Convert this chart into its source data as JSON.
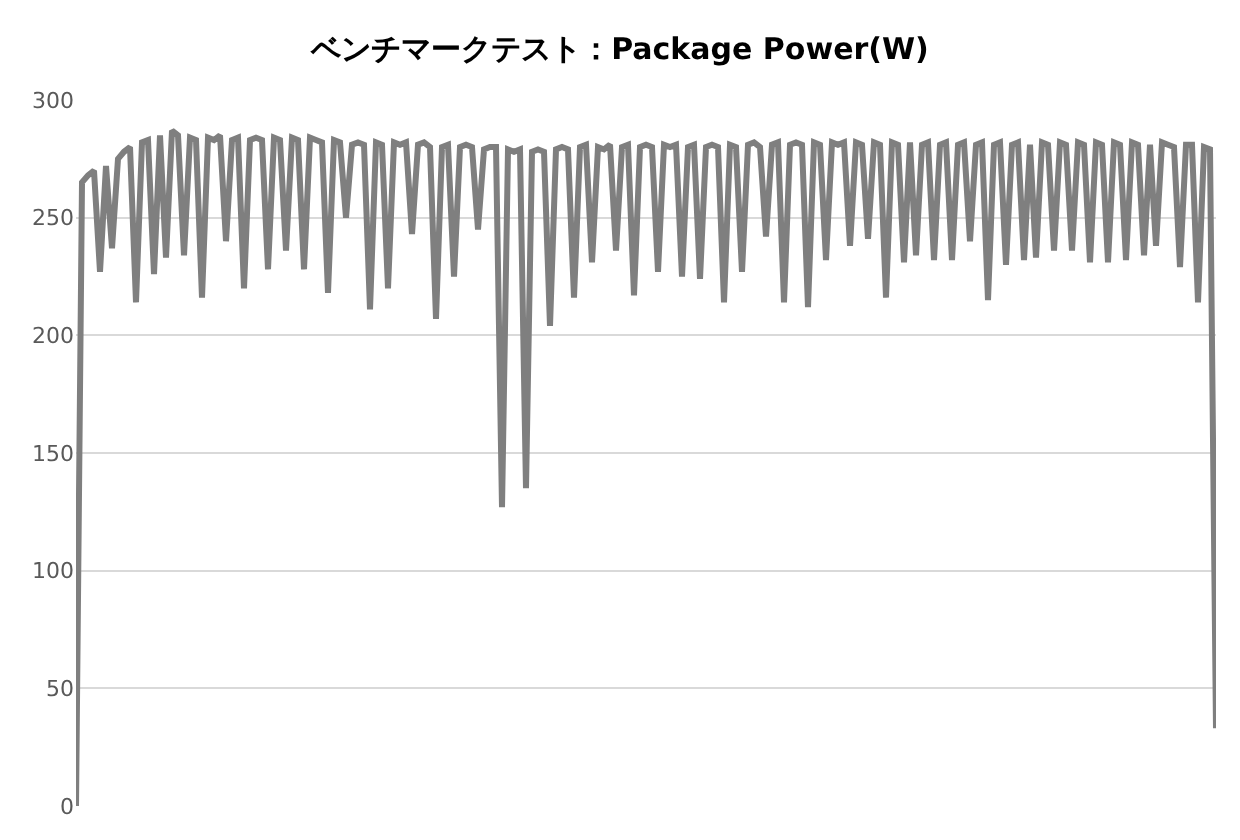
{
  "chart_data": {
    "type": "line",
    "title": "ベンチマークテスト：Package Power(W)",
    "categories": [
      null,
      null,
      null,
      null,
      null,
      null,
      null,
      null,
      null,
      null,
      null,
      null,
      null,
      null,
      null,
      null,
      null,
      null,
      null,
      null,
      null,
      null,
      null,
      null,
      null,
      null,
      null,
      null,
      null,
      null,
      null,
      null,
      null,
      null,
      null,
      null,
      null,
      null,
      null,
      null,
      null,
      null,
      null,
      null,
      null,
      null,
      null,
      null,
      null,
      null,
      null,
      null,
      null,
      null,
      null,
      null,
      null,
      null,
      null,
      null,
      null,
      null,
      null,
      null,
      null,
      null,
      null,
      null,
      null,
      null,
      null,
      null,
      null,
      null,
      null,
      null,
      null,
      null,
      null,
      null,
      null,
      null,
      null,
      null,
      null,
      null,
      null,
      null,
      null,
      null,
      null,
      null,
      null,
      null,
      null,
      null,
      null,
      null,
      null,
      null,
      null,
      null,
      null,
      null,
      null,
      null,
      null,
      null,
      null,
      null,
      null,
      null,
      null,
      null,
      null,
      null,
      null,
      null,
      null,
      null,
      null,
      null,
      null,
      null,
      null,
      null,
      null,
      null,
      null,
      null,
      null,
      null,
      null,
      null,
      null,
      null,
      null,
      null,
      null,
      null,
      null,
      null,
      null,
      null,
      null,
      null,
      null,
      null,
      null,
      null,
      null,
      null,
      null,
      null,
      null,
      null,
      null,
      null,
      null,
      null,
      null,
      null,
      null,
      null,
      null,
      null,
      null,
      null,
      null,
      null,
      null,
      null,
      null,
      null,
      null,
      null,
      null,
      null,
      null,
      null,
      null,
      null,
      null,
      null,
      null,
      null,
      null,
      null,
      null,
      null,
      null
    ],
    "series": [
      {
        "color": "#7f7f7f",
        "values": [
          0,
          265,
          268,
          270,
          227,
          272,
          237,
          275,
          278,
          280,
          214,
          282,
          283,
          226,
          285,
          233,
          287,
          285,
          234,
          284,
          283,
          216,
          284,
          283,
          285,
          240,
          283,
          284,
          220,
          283,
          284,
          283,
          228,
          284,
          283,
          236,
          284,
          283,
          228,
          284,
          283,
          282,
          218,
          283,
          282,
          250,
          281,
          282,
          281,
          211,
          282,
          281,
          220,
          282,
          281,
          282,
          243,
          281,
          282,
          280,
          207,
          280,
          281,
          225,
          280,
          281,
          280,
          245,
          279,
          280,
          280,
          127,
          279,
          278,
          279,
          135,
          278,
          279,
          278,
          204,
          279,
          280,
          279,
          216,
          280,
          281,
          231,
          280,
          279,
          281,
          236,
          280,
          281,
          217,
          280,
          281,
          280,
          227,
          281,
          280,
          281,
          225,
          280,
          281,
          224,
          280,
          281,
          280,
          214,
          281,
          280,
          227,
          281,
          282,
          280,
          242,
          281,
          282,
          214,
          281,
          282,
          281,
          212,
          282,
          281,
          232,
          282,
          281,
          282,
          238,
          282,
          281,
          241,
          282,
          281,
          216,
          282,
          281,
          231,
          282,
          234,
          281,
          282,
          232,
          281,
          282,
          232,
          281,
          282,
          240,
          281,
          282,
          215,
          281,
          282,
          230,
          281,
          282,
          232,
          281,
          233,
          282,
          281,
          236,
          282,
          281,
          236,
          282,
          281,
          231,
          282,
          281,
          231,
          282,
          281,
          232,
          282,
          281,
          234,
          281,
          238,
          282,
          281,
          280,
          229,
          281,
          281,
          214,
          280,
          279,
          33
        ]
      }
    ],
    "ylim": [
      0,
      300
    ],
    "yticks": [
      0,
      50,
      100,
      150,
      200,
      250,
      300
    ],
    "grid": "y",
    "tick_labels": "y",
    "marker": "none",
    "line_style": "solid"
  }
}
